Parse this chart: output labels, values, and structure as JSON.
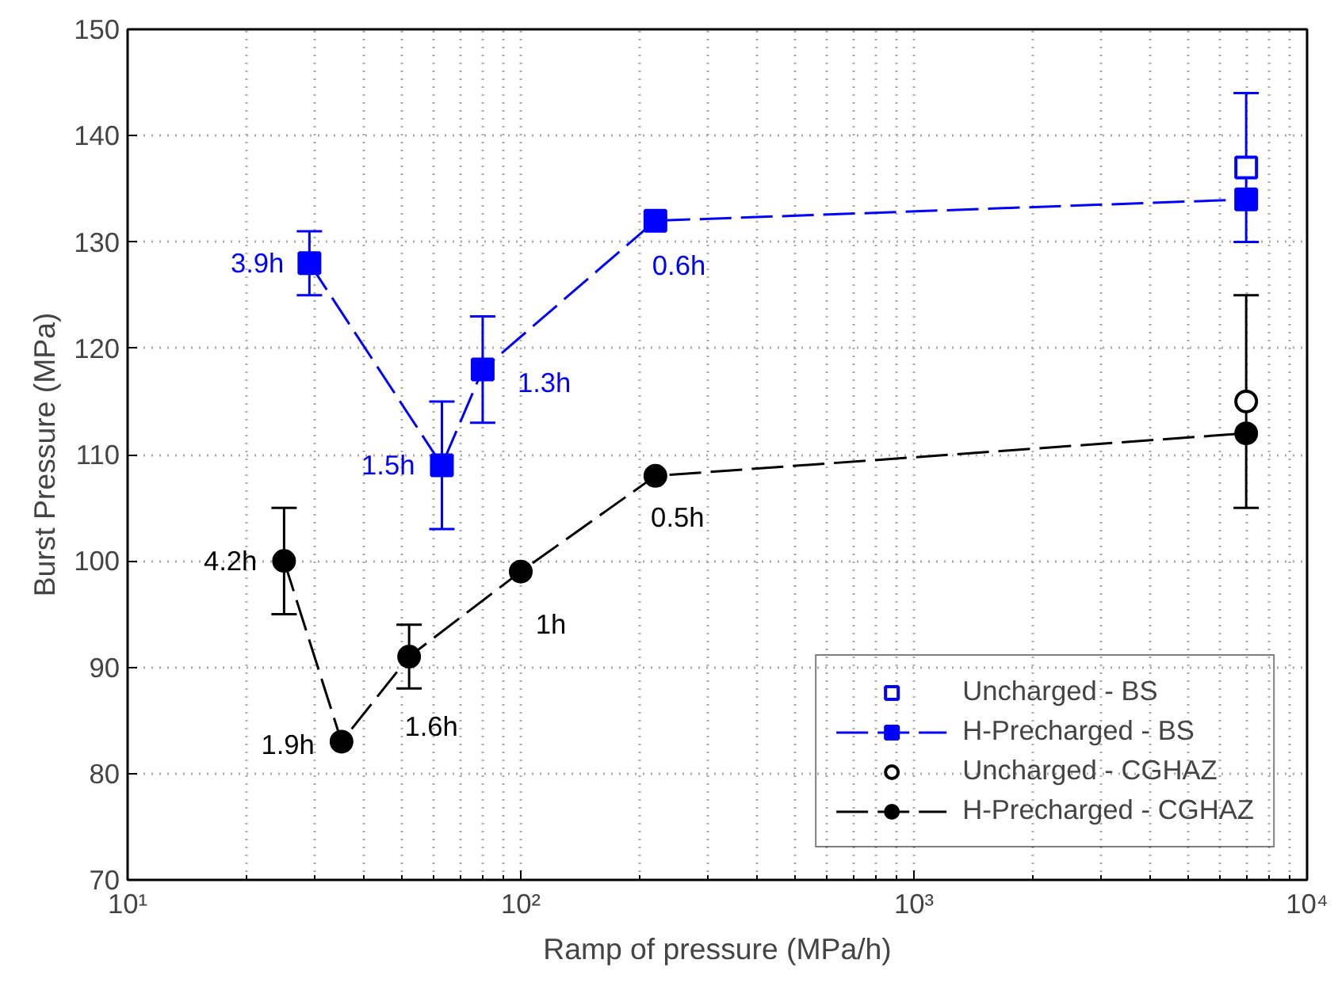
{
  "chart_data": {
    "type": "line",
    "xlabel": "Ramp of pressure (MPa/h)",
    "ylabel": "Burst Pressure (MPa)",
    "log": "x",
    "xlim": [
      10,
      10000
    ],
    "xticks": [
      {
        "value": 10,
        "label": "10¹"
      },
      {
        "value": 100,
        "label": "10²"
      },
      {
        "value": 1000,
        "label": "10³"
      },
      {
        "value": 10000,
        "label": "10⁴"
      }
    ],
    "ylim": [
      70,
      150
    ],
    "yticks": [
      70,
      80,
      90,
      100,
      110,
      120,
      130,
      140,
      150
    ],
    "grid": true,
    "legend": "bottom right",
    "series": [
      {
        "name": "Uncharged - BS",
        "type": "scatter",
        "marker": "square",
        "color": "#0000ff",
        "x": [
          7000
        ],
        "values": [
          137
        ],
        "errors": [
          [
            130,
            144
          ]
        ]
      },
      {
        "name": "H-Precharged - BS",
        "marker": "square",
        "line_style": "dashed",
        "color": "#0000ff",
        "x": [
          29,
          63,
          80,
          220,
          7000
        ],
        "values": [
          128,
          109,
          118,
          132,
          134
        ],
        "errors": [
          [
            125,
            131
          ],
          [
            103,
            115
          ],
          [
            113,
            123
          ],
          null,
          null
        ]
      },
      {
        "name": "Uncharged - CGHAZ",
        "type": "scatter",
        "marker": "circle",
        "color": "#000000",
        "x": [
          7000
        ],
        "values": [
          115
        ],
        "errors": [
          [
            105,
            125
          ]
        ]
      },
      {
        "name": "H-Precharged - CGHAZ",
        "marker": "circle",
        "line_style": "dashed",
        "color": "#000000",
        "x": [
          25,
          35,
          52,
          100,
          220,
          7000
        ],
        "values": [
          100,
          83,
          91,
          99,
          108,
          112
        ],
        "errors": [
          [
            95,
            105
          ],
          null,
          [
            88,
            94
          ],
          null,
          null,
          null
        ]
      }
    ],
    "annotations": [
      {
        "text": "3.9h",
        "x": 29,
        "y": 128
      },
      {
        "text": "1.5h",
        "x": 63,
        "y": 109
      },
      {
        "text": "1.3h",
        "x": 80,
        "y": 118
      },
      {
        "text": "0.6h",
        "x": 220,
        "y": 132
      },
      {
        "text": "4.2h",
        "x": 25,
        "y": 100
      },
      {
        "text": "1.9h",
        "x": 35,
        "y": 83
      },
      {
        "text": "1.6h",
        "x": 52,
        "y": 91
      },
      {
        "text": "1h",
        "x": 100,
        "y": 99
      },
      {
        "text": "0.5h",
        "x": 220,
        "y": 108
      }
    ]
  }
}
